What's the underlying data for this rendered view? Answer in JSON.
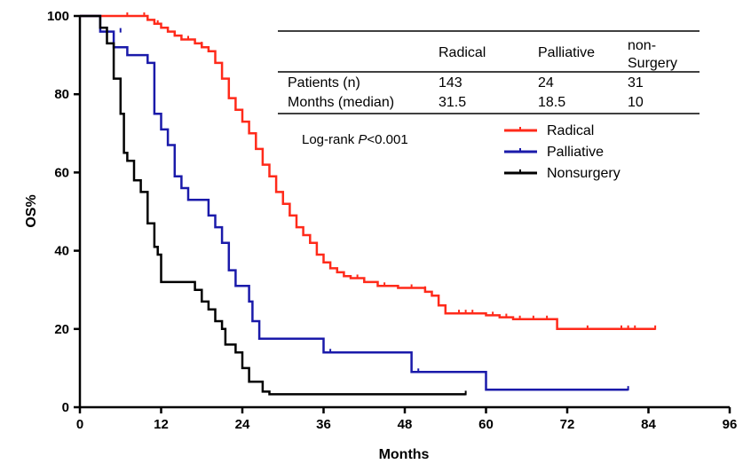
{
  "chart_data": {
    "type": "line",
    "xlabel": "Months",
    "ylabel": "OS%",
    "xlim": [
      0,
      96
    ],
    "ylim": [
      0,
      100
    ],
    "xticks": [
      "0",
      "12",
      "24",
      "36",
      "48",
      "60",
      "72",
      "84",
      "96"
    ],
    "yticks": [
      "0",
      "20",
      "40",
      "60",
      "80",
      "100"
    ],
    "annotation": {
      "prefix": "Log-rank ",
      "italic": "P",
      "suffix": "<0.001"
    },
    "legend_position": "center-right",
    "table": {
      "headers": [
        "",
        "Radical",
        "Palliative",
        "non-Surgery"
      ],
      "rows": [
        [
          "Patients (n)",
          "143",
          "24",
          "31"
        ],
        [
          "Months (median)",
          "31.5",
          "18.5",
          "10"
        ]
      ]
    },
    "series": [
      {
        "name": "Radical",
        "color": "#ff2a1a",
        "steps": [
          [
            0,
            100
          ],
          [
            9,
            100
          ],
          [
            10,
            99
          ],
          [
            11,
            98
          ],
          [
            12,
            97
          ],
          [
            13,
            96
          ],
          [
            14,
            95
          ],
          [
            15,
            94
          ],
          [
            17,
            93
          ],
          [
            18,
            92
          ],
          [
            19,
            91
          ],
          [
            20,
            88
          ],
          [
            21,
            84
          ],
          [
            22,
            79
          ],
          [
            23,
            76
          ],
          [
            24,
            73
          ],
          [
            25,
            70
          ],
          [
            26,
            66
          ],
          [
            27,
            62
          ],
          [
            28,
            59
          ],
          [
            29,
            55
          ],
          [
            30,
            52
          ],
          [
            31,
            49
          ],
          [
            32,
            46
          ],
          [
            33,
            44
          ],
          [
            34,
            42
          ],
          [
            35,
            39
          ],
          [
            36,
            37
          ],
          [
            37,
            35.5
          ],
          [
            38,
            34.5
          ],
          [
            39,
            33.5
          ],
          [
            40,
            33
          ],
          [
            42,
            32
          ],
          [
            44,
            31
          ],
          [
            47,
            30.5
          ],
          [
            50,
            30.5
          ],
          [
            51,
            29.5
          ],
          [
            52,
            28.5
          ],
          [
            53,
            26
          ],
          [
            54,
            24
          ],
          [
            58,
            24
          ],
          [
            60,
            23.5
          ],
          [
            62,
            23
          ],
          [
            64,
            22.5
          ],
          [
            70,
            22.5
          ],
          [
            70.5,
            20
          ],
          [
            85,
            20
          ]
        ],
        "censor": [
          [
            7,
            100
          ],
          [
            9.5,
            100
          ],
          [
            11.5,
            98
          ],
          [
            14,
            95
          ],
          [
            16,
            94
          ],
          [
            18,
            92.5
          ],
          [
            25,
            70
          ],
          [
            28,
            59
          ],
          [
            31,
            49
          ],
          [
            34,
            42
          ],
          [
            38,
            34.5
          ],
          [
            41,
            33
          ],
          [
            45,
            31
          ],
          [
            49,
            30.5
          ],
          [
            51,
            30
          ],
          [
            53,
            26
          ],
          [
            56,
            24
          ],
          [
            57,
            24
          ],
          [
            58,
            24
          ],
          [
            61,
            23.5
          ],
          [
            63,
            23
          ],
          [
            65,
            22.5
          ],
          [
            67,
            22.5
          ],
          [
            69,
            22.5
          ],
          [
            75,
            20
          ],
          [
            80,
            20
          ],
          [
            81,
            20
          ],
          [
            82,
            20
          ],
          [
            85,
            20
          ]
        ]
      },
      {
        "name": "Palliative",
        "color": "#1a1aaa",
        "steps": [
          [
            0,
            100
          ],
          [
            3,
            96
          ],
          [
            5,
            92
          ],
          [
            7,
            90
          ],
          [
            10,
            88
          ],
          [
            11,
            75
          ],
          [
            12,
            71
          ],
          [
            13,
            67
          ],
          [
            14,
            59
          ],
          [
            15,
            56
          ],
          [
            16,
            53
          ],
          [
            19,
            49
          ],
          [
            20,
            46
          ],
          [
            21,
            42
          ],
          [
            22,
            35
          ],
          [
            23,
            31
          ],
          [
            25,
            27
          ],
          [
            25.5,
            22
          ],
          [
            26.5,
            17.5
          ],
          [
            36,
            14
          ],
          [
            49,
            9
          ],
          [
            60,
            4.5
          ],
          [
            81,
            4.5
          ]
        ],
        "censor": [
          [
            6,
            96
          ],
          [
            37,
            14
          ],
          [
            50,
            9
          ],
          [
            81,
            4.5
          ]
        ]
      },
      {
        "name": "Nonsurgery",
        "color": "#000000",
        "steps": [
          [
            0,
            100
          ],
          [
            3,
            97
          ],
          [
            4,
            93
          ],
          [
            5,
            84
          ],
          [
            6,
            75
          ],
          [
            6.5,
            65
          ],
          [
            7,
            63
          ],
          [
            8,
            58
          ],
          [
            9,
            55
          ],
          [
            10,
            47
          ],
          [
            11,
            41
          ],
          [
            11.5,
            39
          ],
          [
            12,
            32
          ],
          [
            17,
            30
          ],
          [
            18,
            27
          ],
          [
            19,
            25
          ],
          [
            20,
            22
          ],
          [
            21,
            20
          ],
          [
            21.5,
            16
          ],
          [
            23,
            14
          ],
          [
            24,
            10
          ],
          [
            25,
            6.5
          ],
          [
            27,
            4
          ],
          [
            28,
            3.3
          ],
          [
            57,
            3.3
          ]
        ],
        "censor": [
          [
            57,
            3.3
          ]
        ]
      }
    ]
  }
}
